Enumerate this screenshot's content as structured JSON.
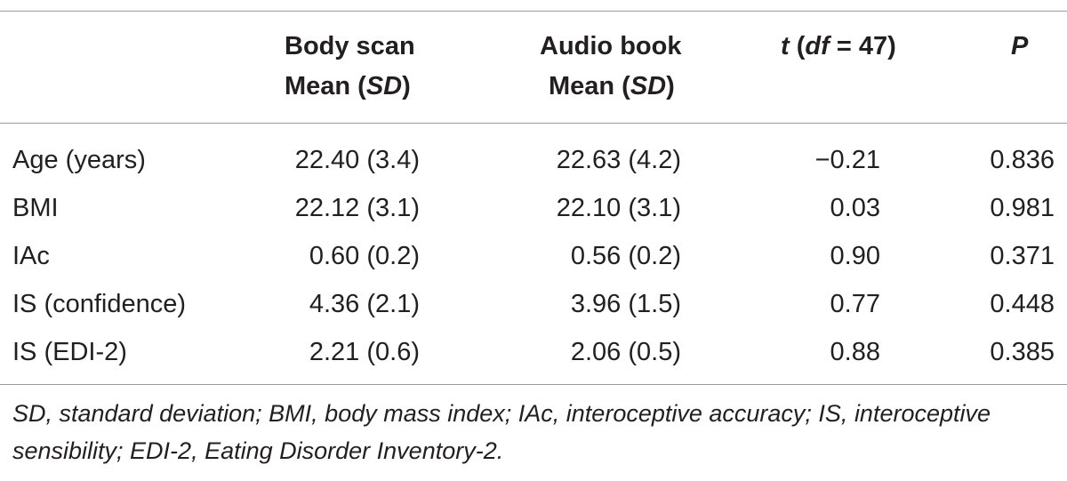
{
  "header": {
    "body_scan_line1": "Body scan",
    "body_scan_line2_prefix": "Mean (",
    "body_scan_line2_italic": "SD",
    "body_scan_line2_suffix": ")",
    "audio_book_line1": "Audio book",
    "audio_book_line2_prefix": "Mean (",
    "audio_book_line2_italic": "SD",
    "audio_book_line2_suffix": ")",
    "t_italic": "t",
    "t_open": " (",
    "t_df_italic": "df",
    "t_rest": " = 47)",
    "p_label": "P"
  },
  "rows": [
    {
      "label": "Age (years)",
      "body_scan": "22.40 (3.4)",
      "audio_book": "22.63 (4.2)",
      "t": "−0.21",
      "p": "0.836"
    },
    {
      "label": "BMI",
      "body_scan": "22.12 (3.1)",
      "audio_book": "22.10 (3.1)",
      "t": "0.03",
      "p": "0.981"
    },
    {
      "label": "IAc",
      "body_scan": "0.60 (0.2)",
      "audio_book": "0.56 (0.2)",
      "t": "0.90",
      "p": "0.371"
    },
    {
      "label": "IS (confidence)",
      "body_scan": "4.36 (2.1)",
      "audio_book": "3.96 (1.5)",
      "t": "0.77",
      "p": "0.448"
    },
    {
      "label": "IS (EDI-2)",
      "body_scan": "2.21 (0.6)",
      "audio_book": "2.06 (0.5)",
      "t": "0.88",
      "p": "0.385"
    }
  ],
  "footnote": "SD, standard deviation; BMI, body mass index; IAc, interoceptive accuracy; IS, interoceptive sensibility; EDI-2, Eating Disorder Inventory-2."
}
